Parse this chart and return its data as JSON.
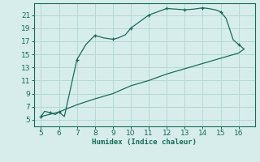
{
  "xlabel": "Humidex (Indice chaleur)",
  "bg_color": "#d6edec",
  "line_color": "#1a6b5a",
  "grid_color": "#b8d8d4",
  "tick_color": "#1a6b5a",
  "curve_upper_x": [
    5.0,
    5.2,
    5.5,
    5.8,
    6.0,
    6.3,
    7.0,
    7.5,
    8.0,
    8.5,
    9.0,
    9.3,
    9.7,
    10.0,
    10.5,
    11.0,
    11.5,
    12.0,
    12.5,
    13.0,
    13.5,
    14.0,
    14.3,
    14.7,
    15.0,
    15.3,
    15.7,
    16.0,
    16.3
  ],
  "curve_upper_y": [
    5.5,
    6.3,
    6.1,
    5.8,
    6.2,
    5.5,
    14.2,
    16.5,
    17.9,
    17.5,
    17.3,
    17.5,
    18.0,
    19.0,
    20.0,
    21.0,
    21.5,
    22.0,
    21.9,
    21.8,
    21.9,
    22.1,
    22.0,
    21.8,
    21.5,
    20.5,
    17.2,
    16.5,
    15.8
  ],
  "curve_lower_x": [
    5.0,
    6.0,
    7.0,
    8.0,
    9.0,
    10.0,
    11.0,
    12.0,
    13.0,
    14.0,
    15.0,
    16.0,
    16.3
  ],
  "curve_lower_y": [
    5.5,
    6.2,
    7.3,
    8.2,
    9.0,
    10.2,
    11.0,
    12.0,
    12.8,
    13.6,
    14.4,
    15.2,
    15.8
  ],
  "markers_upper_x": [
    5.0,
    5.5,
    6.0,
    7.0,
    8.0,
    9.0,
    10.0,
    11.0,
    12.0,
    13.0,
    14.0,
    15.0,
    16.0
  ],
  "markers_upper_y": [
    5.5,
    6.1,
    6.2,
    14.2,
    17.9,
    17.3,
    19.0,
    21.0,
    22.0,
    21.8,
    22.1,
    21.5,
    16.5
  ],
  "xlim": [
    4.6,
    16.9
  ],
  "ylim": [
    4.0,
    22.8
  ],
  "xticks": [
    5,
    6,
    7,
    8,
    9,
    10,
    11,
    12,
    13,
    14,
    15,
    16
  ],
  "yticks": [
    5,
    7,
    9,
    11,
    13,
    15,
    17,
    19,
    21
  ],
  "tick_fontsize": 6.5,
  "xlabel_fontsize": 6.5
}
